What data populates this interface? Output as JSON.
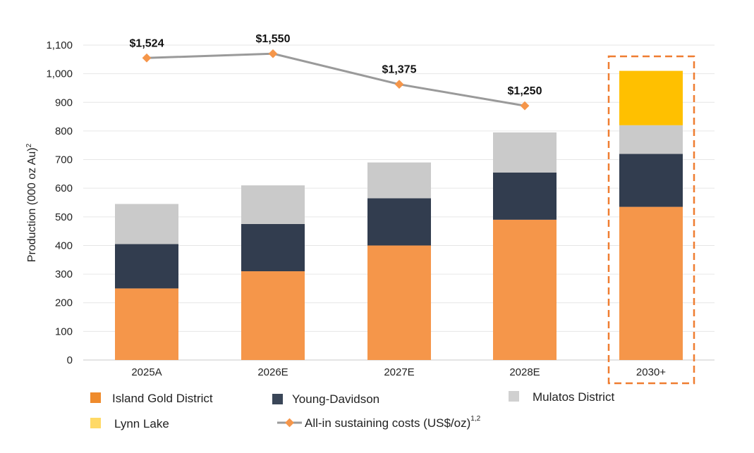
{
  "chart_data": {
    "type": "bar",
    "stacked": true,
    "categories": [
      "2025A",
      "2026E",
      "2027E",
      "2028E",
      "2030+"
    ],
    "ylabel": "Production (000 oz Au)",
    "ylabel_sup": "2",
    "ylim": [
      0,
      1100
    ],
    "yticks": [
      "0",
      "100",
      "200",
      "300",
      "400",
      "500",
      "600",
      "700",
      "800",
      "900",
      "1,000",
      "1,100"
    ],
    "grid": true,
    "series": [
      {
        "name": "Island Gold District",
        "color": "#F5964A",
        "legend_color": "#EF8B2C",
        "values": [
          250,
          310,
          400,
          490,
          535
        ]
      },
      {
        "name": "Young-Davidson",
        "color": "#323D4F",
        "legend_color": "#3A4658",
        "values": [
          155,
          165,
          165,
          165,
          185
        ]
      },
      {
        "name": "Mulatos District",
        "color": "#CACACA",
        "legend_color": "#D0D0D0",
        "values": [
          140,
          135,
          125,
          140,
          100
        ]
      },
      {
        "name": "Lynn Lake",
        "color": "#FFC000",
        "legend_color": "#FFD966",
        "values": [
          0,
          0,
          0,
          0,
          190
        ]
      }
    ],
    "line": {
      "name": "All-in sustaining costs (US$/oz)",
      "name_sup": "1,2",
      "line_color": "#9A9A9A",
      "marker_color": "#F5964A",
      "points": [
        {
          "category": "2025A",
          "y": 1055,
          "label": "$1,524"
        },
        {
          "category": "2026E",
          "y": 1070,
          "label": "$1,550"
        },
        {
          "category": "2027E",
          "y": 963,
          "label": "$1,375"
        },
        {
          "category": "2028E",
          "y": 888,
          "label": "$1,250"
        }
      ]
    },
    "highlight": {
      "category": "2030+",
      "style": "dashed box",
      "color": "#EF7D31"
    }
  },
  "legend": {
    "island_gold": "Island Gold District",
    "young_davidson": "Young-Davidson",
    "mulatos": "Mulatos District",
    "lynn_lake": "Lynn Lake",
    "aisc": "All-in sustaining costs (US$/oz)",
    "aisc_sup": "1,2"
  }
}
